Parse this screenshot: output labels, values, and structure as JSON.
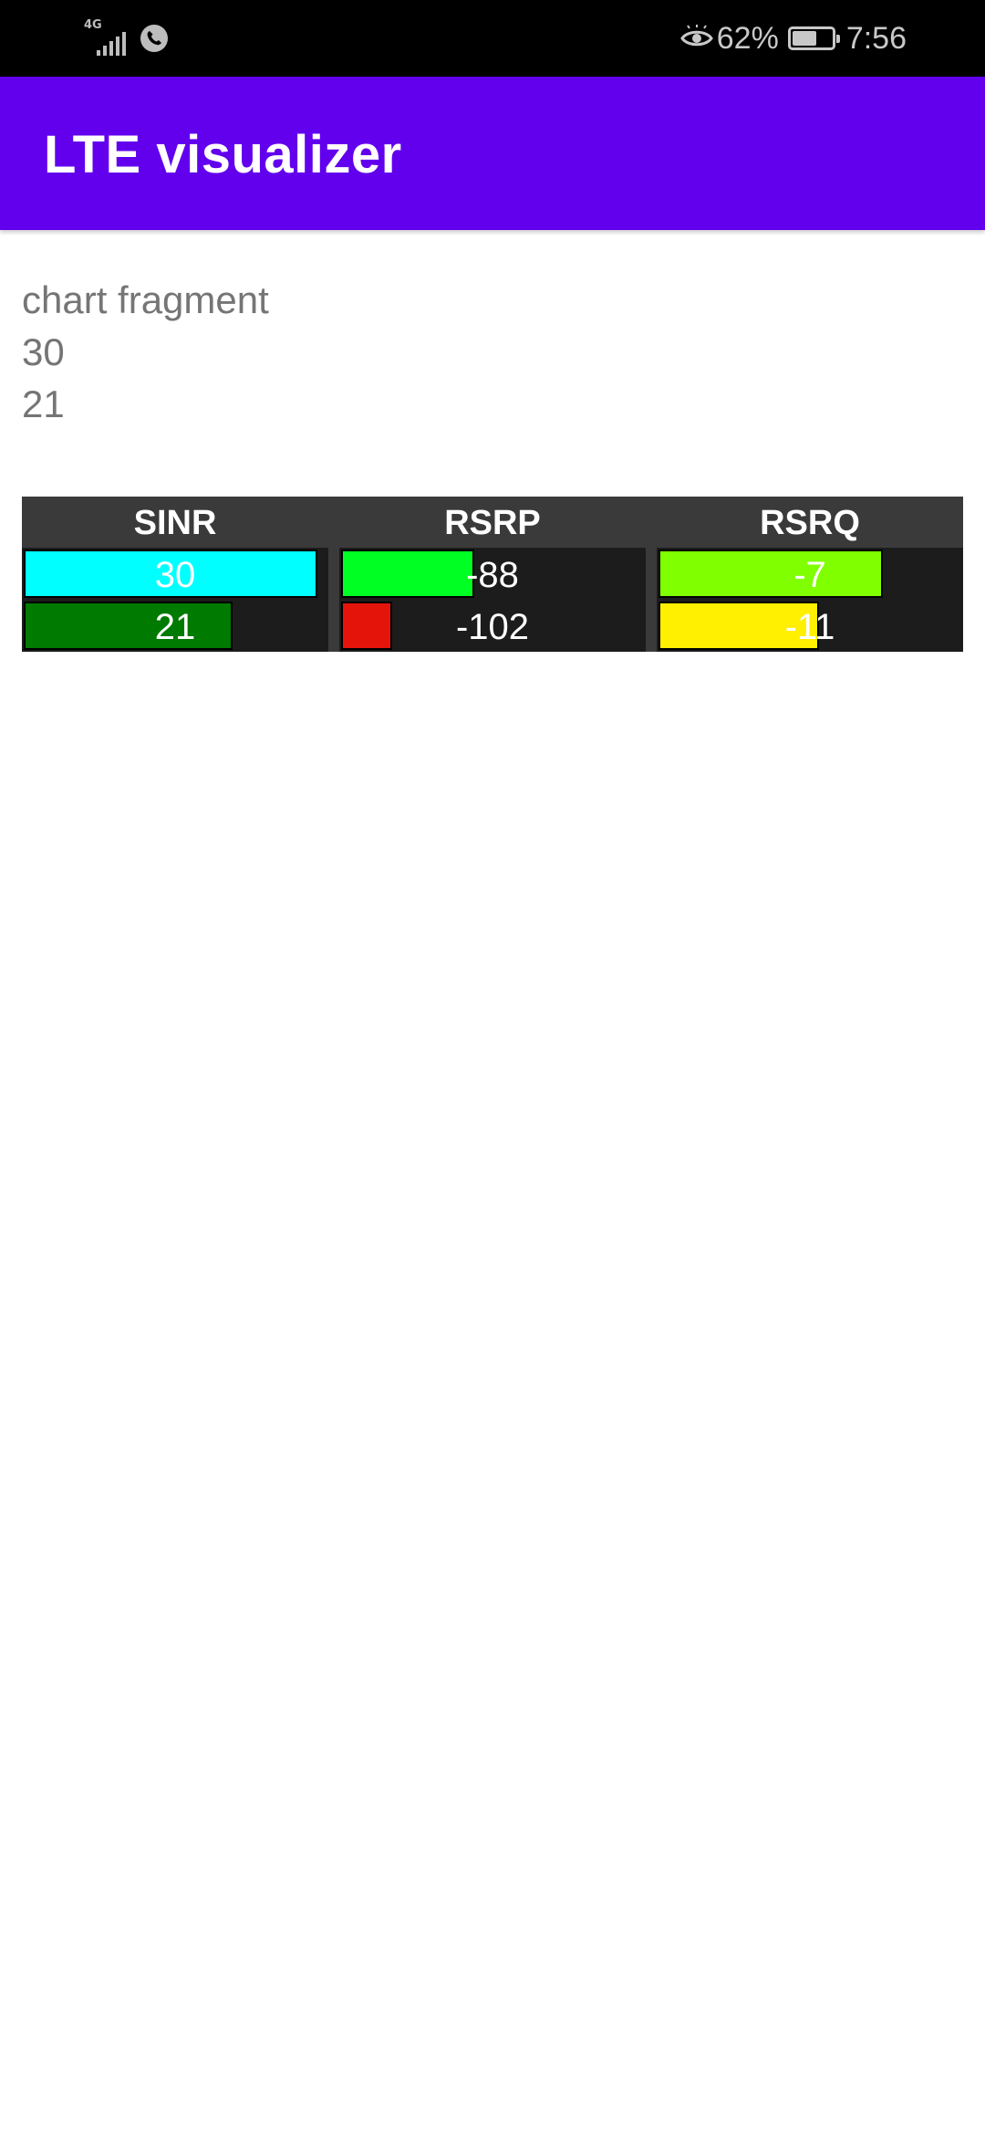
{
  "status_bar": {
    "network_label": "4G",
    "battery_percent": "62%",
    "battery_level": 0.62,
    "time": "7:56",
    "icons": [
      "signal-icon",
      "phone-call-icon",
      "eye-icon",
      "battery-icon"
    ]
  },
  "app_bar": {
    "title": "LTE visualizer",
    "color": "#6200ee"
  },
  "content": {
    "lines": [
      "chart fragment",
      "30",
      "21"
    ]
  },
  "signal_table": {
    "columns": [
      {
        "name": "SINR",
        "rows": [
          {
            "value": "30",
            "fill": 0.97,
            "color": "#00ffff"
          },
          {
            "value": "21",
            "fill": 0.69,
            "color": "#007a00"
          }
        ]
      },
      {
        "name": "RSRP",
        "rows": [
          {
            "value": "-88",
            "fill": 0.44,
            "color": "#00ff22"
          },
          {
            "value": "-102",
            "fill": 0.17,
            "color": "#e5140b"
          }
        ]
      },
      {
        "name": "RSRQ",
        "rows": [
          {
            "value": "-7",
            "fill": 0.74,
            "color": "#7fff00"
          },
          {
            "value": "-11",
            "fill": 0.53,
            "color": "#ffef00"
          }
        ]
      }
    ]
  }
}
